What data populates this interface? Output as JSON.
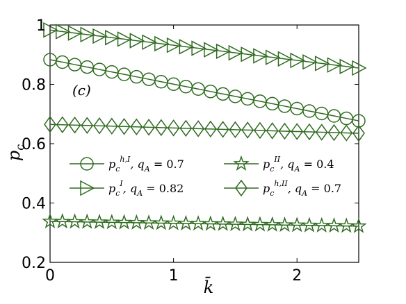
{
  "chart_data": {
    "type": "line",
    "panel_label": "(c)",
    "xlabel": "k̄",
    "ylabel": "p",
    "ylabel_sub": "c",
    "xlim": [
      0,
      2.5
    ],
    "ylim": [
      0.2,
      1.0
    ],
    "xticks": [
      0,
      1,
      2
    ],
    "yticks": [
      0.2,
      0.4,
      0.6,
      0.8,
      1
    ],
    "ytick_labels": [
      "0.2",
      "0.4",
      "0.6",
      "0.8",
      "1"
    ],
    "xtick_labels": [
      "0",
      "1",
      "2"
    ],
    "grid": false,
    "line_color": "#2e6b1f",
    "x": [
      0,
      0.1,
      0.2,
      0.3,
      0.4,
      0.5,
      0.6,
      0.7,
      0.8,
      0.9,
      1.0,
      1.1,
      1.2,
      1.3,
      1.4,
      1.5,
      1.6,
      1.7,
      1.8,
      1.9,
      2.0,
      2.1,
      2.2,
      2.3,
      2.4,
      2.5
    ],
    "series": [
      {
        "key": "circle",
        "marker": "circle",
        "legend_main": "p",
        "legend_sub": "c",
        "legend_sup": "h,I",
        "legend_rest": ", q",
        "legend_rest_sub": "A",
        "legend_value": " = 0.7",
        "start": 0.883,
        "end": 0.677
      },
      {
        "key": "triangle",
        "marker": "triangle-right",
        "legend_main": "p",
        "legend_sub": "c",
        "legend_sup": "I",
        "legend_rest": ", q",
        "legend_rest_sub": "A",
        "legend_value": " = 0.82",
        "start": 0.983,
        "end": 0.855
      },
      {
        "key": "star",
        "marker": "star",
        "legend_main": "p",
        "legend_sub": "c",
        "legend_sup": "II",
        "legend_rest": ", q",
        "legend_rest_sub": "A",
        "legend_value": " = 0.4",
        "start": 0.338,
        "end": 0.322
      },
      {
        "key": "diamond",
        "marker": "diamond",
        "legend_main": "p",
        "legend_sub": "c",
        "legend_sup": "h,II",
        "legend_rest": ", q",
        "legend_rest_sub": "A",
        "legend_value": " = 0.7",
        "start": 0.665,
        "end": 0.635
      }
    ],
    "legend_order": [
      "circle",
      "star",
      "triangle",
      "diamond"
    ],
    "legend_placement": "center-left, two columns"
  }
}
